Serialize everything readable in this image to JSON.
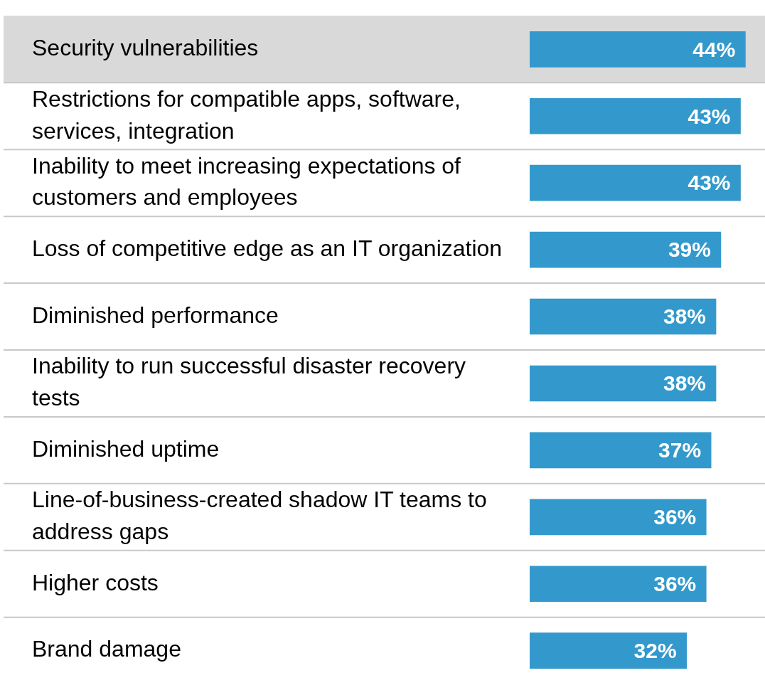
{
  "chart_data": {
    "type": "bar",
    "orientation": "horizontal",
    "categories": [
      "Security vulnerabilities",
      "Restrictions for compatible apps, software, services, integration",
      "Inability to meet increasing expectations of customers and employees",
      "Loss of competitive edge as an IT organization",
      "Diminished performance",
      "Inability to run successful disaster recovery tests",
      "Diminished uptime",
      "Line-of-business-created shadow IT teams to address gaps",
      "Higher costs",
      "Brand damage"
    ],
    "values": [
      44,
      43,
      43,
      39,
      38,
      38,
      37,
      36,
      36,
      32
    ],
    "value_labels": [
      "44%",
      "43%",
      "43%",
      "39%",
      "38%",
      "38%",
      "37%",
      "36%",
      "36%",
      "32%"
    ],
    "color": "#3399cc",
    "xlim": [
      0,
      48
    ],
    "grid": "y",
    "tick_labels": "y",
    "legend": false
  }
}
